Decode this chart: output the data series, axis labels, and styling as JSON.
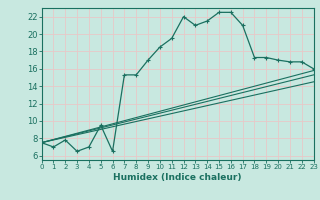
{
  "xlabel": "Humidex (Indice chaleur)",
  "xlim": [
    0,
    23
  ],
  "ylim": [
    5.5,
    23
  ],
  "yticks": [
    6,
    8,
    10,
    12,
    14,
    16,
    18,
    20,
    22
  ],
  "xticks": [
    0,
    1,
    2,
    3,
    4,
    5,
    6,
    7,
    8,
    9,
    10,
    11,
    12,
    13,
    14,
    15,
    16,
    17,
    18,
    19,
    20,
    21,
    22,
    23
  ],
  "bg_color": "#c8e8e0",
  "grid_color": "#e8c8c8",
  "line_color": "#1a7060",
  "curve1_x": [
    0,
    1,
    2,
    3,
    4,
    5,
    6,
    7,
    8,
    9,
    10,
    11,
    12,
    13,
    14,
    15,
    16,
    17,
    18,
    19,
    20,
    21,
    22,
    23
  ],
  "curve1_y": [
    7.5,
    7.0,
    7.8,
    6.5,
    7.0,
    9.5,
    6.5,
    15.3,
    15.3,
    17.0,
    18.5,
    19.5,
    22.0,
    21.0,
    21.5,
    22.5,
    22.5,
    21.0,
    17.3,
    17.3,
    17.0,
    16.8,
    16.8,
    16.0
  ],
  "line1_x": [
    0,
    23
  ],
  "line1_y": [
    7.5,
    15.8
  ],
  "line2_x": [
    0,
    23
  ],
  "line2_y": [
    7.5,
    15.3
  ],
  "line3_x": [
    0,
    23
  ],
  "line3_y": [
    7.5,
    14.5
  ]
}
